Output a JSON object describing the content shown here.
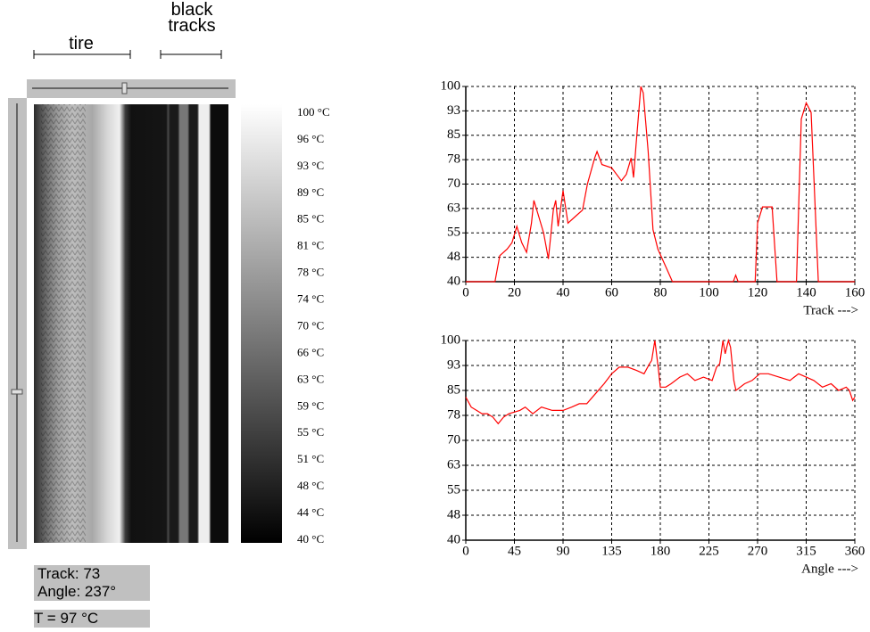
{
  "labels": {
    "tire": "tire",
    "black_tracks": "black tracks"
  },
  "colorbar": {
    "labels": [
      "100 °C",
      "96 °C",
      "93 °C",
      "89 °C",
      "85 °C",
      "81 °C",
      "78 °C",
      "74 °C",
      "70 °C",
      "66 °C",
      "63 °C",
      "59 °C",
      "55 °C",
      "51 °C",
      "48 °C",
      "44 °C",
      "40 °C"
    ]
  },
  "readout": {
    "track": "Track: 73",
    "angle": "Angle: 237°",
    "temperature": "T =  97 °C"
  },
  "chart_data": [
    {
      "type": "line",
      "x_label": "Track --->",
      "x": [
        0,
        12,
        14,
        17,
        19,
        21,
        23,
        25,
        27,
        28,
        30,
        32,
        34,
        36,
        37,
        38,
        40,
        42,
        45,
        48,
        50,
        53,
        54,
        56,
        60,
        64,
        66,
        68,
        69,
        70,
        72,
        73,
        75,
        77,
        79,
        82,
        85,
        110,
        111,
        112,
        119,
        120,
        122,
        126,
        128,
        136,
        138,
        140,
        142,
        145,
        160
      ],
      "series": [
        {
          "color": "#ff0000",
          "values": [
            40,
            40,
            48,
            50,
            52,
            57,
            52,
            49,
            58,
            65,
            60,
            55,
            47,
            62,
            65,
            57,
            68,
            58,
            60,
            62,
            70,
            78,
            80,
            76,
            75,
            71,
            73,
            78,
            72,
            82,
            100,
            98,
            80,
            56,
            50,
            45,
            40,
            40,
            42,
            40,
            40,
            58,
            63,
            63,
            40,
            40,
            90,
            95,
            92,
            40,
            40
          ]
        }
      ],
      "xlim": [
        0,
        160
      ],
      "xticks": [
        0,
        20,
        40,
        60,
        80,
        100,
        120,
        140,
        160
      ],
      "ylim": [
        40,
        100
      ],
      "yticks": [
        40,
        {
          "value": 47.5,
          "label": "48"
        },
        55,
        {
          "value": 62.5,
          "label": "63"
        },
        70,
        {
          "value": 77.5,
          "label": "78"
        },
        85,
        {
          "value": 92.5,
          "label": "93"
        },
        100
      ],
      "grid": true
    },
    {
      "type": "line",
      "x_label": "Angle --->",
      "x": [
        0,
        5,
        10,
        15,
        20,
        25,
        30,
        35,
        40,
        50,
        55,
        62,
        70,
        80,
        90,
        98,
        105,
        112,
        120,
        128,
        135,
        142,
        150,
        158,
        165,
        170,
        172,
        175,
        178,
        180,
        185,
        190,
        198,
        205,
        212,
        220,
        228,
        232,
        235,
        238,
        240,
        243,
        245,
        248,
        250,
        258,
        265,
        272,
        280,
        290,
        300,
        308,
        315,
        322,
        330,
        338,
        345,
        352,
        355,
        358,
        360
      ],
      "series": [
        {
          "color": "#ff0000",
          "values": [
            83,
            80,
            79,
            78,
            78,
            77,
            75,
            77,
            78,
            79,
            80,
            78,
            80,
            79,
            79,
            80,
            81,
            81,
            84,
            87,
            90,
            92,
            92,
            91,
            90,
            93,
            94,
            100,
            92,
            86,
            86,
            87,
            89,
            90,
            88,
            89,
            88,
            92,
            93,
            100,
            96,
            100,
            98,
            88,
            85,
            87,
            88,
            90,
            90,
            89,
            88,
            90,
            89,
            88,
            86,
            87,
            85,
            86,
            85,
            82,
            83
          ]
        }
      ],
      "xlim": [
        0,
        360
      ],
      "xticks": [
        0,
        45,
        90,
        135,
        180,
        225,
        270,
        315,
        360
      ],
      "ylim": [
        40,
        100
      ],
      "yticks": [
        40,
        {
          "value": 47.5,
          "label": "48"
        },
        55,
        {
          "value": 62.5,
          "label": "63"
        },
        70,
        {
          "value": 77.5,
          "label": "78"
        },
        85,
        {
          "value": 92.5,
          "label": "93"
        },
        100
      ],
      "grid": true
    }
  ]
}
